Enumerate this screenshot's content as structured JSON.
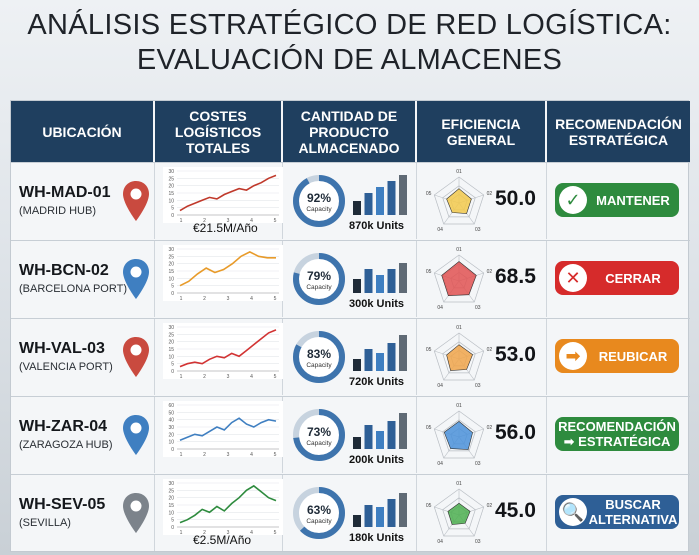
{
  "title": {
    "line1": "ANÁLISIS ESTRATÉGICO DE RED LOGÍSTICA:",
    "line2": "EVALUACIÓN DE ALMACENES"
  },
  "headers": {
    "ubicacion": "UBICACIÓN",
    "costes": "COSTES LOGÍSTICOS TOTALES",
    "cantidad": "CANTIDAD DE PRODUCTO ALMACENADO",
    "eficiencia": "EFICIENCIA GENERAL",
    "recomendacion": "RECOMENDACIÓN ESTRATÉGICA"
  },
  "colors": {
    "header_bg": "#1f3f5f",
    "green": "#2e8b3e",
    "red": "#d62b2b",
    "orange": "#e8891e",
    "blue": "#2e5f96",
    "ring": "#3e74ad"
  },
  "radar_labels": [
    "01",
    "02",
    "03",
    "04",
    "05"
  ],
  "rows": [
    {
      "code": "WH-MAD-01",
      "sub": "(MADRID HUB)",
      "pin_color": "#c94a3f",
      "pin_icon": "location-pin-icon",
      "chart": {
        "y_ticks": [
          "30",
          "25",
          "20",
          "15",
          "10",
          "5",
          "0"
        ],
        "x_ticks": [
          "1",
          "2",
          "3",
          "4",
          "5"
        ],
        "values": [
          3,
          6,
          8,
          10,
          12,
          11,
          14,
          16,
          18,
          17,
          20,
          22,
          25,
          27
        ],
        "ymax": 30,
        "color": "#c0392b"
      },
      "cost_label": "€21.5M/Año",
      "capacity": 92,
      "capacity_text": "92%",
      "capacity_word": "Capacity",
      "bars": [
        0.35,
        0.55,
        0.7,
        0.85,
        1.0
      ],
      "units": "870k Units",
      "radar": {
        "values": [
          0.55,
          0.5,
          0.5,
          0.45,
          0.5
        ],
        "color": "#f2c94c"
      },
      "score": "50.0",
      "rec": {
        "label": "MANTENER",
        "color": "#2e8b3e",
        "icon": "check-icon",
        "glyph": "✓"
      }
    },
    {
      "code": "WH-BCN-02",
      "sub": "(BARCELONA PORT)",
      "pin_color": "#3f7fc1",
      "pin_icon": "location-pin-icon",
      "chart": {
        "y_ticks": [
          "30",
          "25",
          "20",
          "15",
          "10",
          "5",
          "0"
        ],
        "x_ticks": [
          "1",
          "2",
          "3",
          "4",
          "5"
        ],
        "values": [
          5,
          8,
          13,
          17,
          14,
          16,
          20,
          25,
          28,
          25,
          24,
          24
        ],
        "ymax": 30,
        "color": "#e89b2a"
      },
      "cost_label": "",
      "capacity": 79,
      "capacity_text": "79%",
      "capacity_word": "Capacity",
      "bars": [
        0.35,
        0.6,
        0.45,
        0.6,
        0.75
      ],
      "units": "300k Units",
      "radar": {
        "values": [
          0.75,
          0.7,
          0.65,
          0.7,
          0.7
        ],
        "color": "#e05252"
      },
      "score": "68.5",
      "rec": {
        "label": "CERRAR",
        "color": "#d62b2b",
        "icon": "close-icon",
        "glyph": "✕"
      }
    },
    {
      "code": "WH-VAL-03",
      "sub": "(VALENCIA PORT)",
      "pin_color": "#c94a3f",
      "pin_icon": "location-pin-icon",
      "chart": {
        "y_ticks": [
          "30",
          "25",
          "20",
          "15",
          "10",
          "5",
          "0"
        ],
        "x_ticks": [
          "1",
          "2",
          "3",
          "4",
          "5"
        ],
        "values": [
          3,
          5,
          6,
          5,
          8,
          10,
          9,
          12,
          10,
          14,
          18,
          22,
          26,
          28
        ],
        "ymax": 30,
        "color": "#d23333"
      },
      "cost_label": "",
      "capacity": 83,
      "capacity_text": "83%",
      "capacity_word": "Capacity",
      "bars": [
        0.3,
        0.55,
        0.45,
        0.7,
        0.9
      ],
      "units": "720k Units",
      "radar": {
        "values": [
          0.55,
          0.55,
          0.5,
          0.55,
          0.5
        ],
        "color": "#f0a54a"
      },
      "score": "53.0",
      "rec": {
        "label": "REUBICAR",
        "color": "#e8891e",
        "icon": "arrow-right-icon",
        "glyph": "➡"
      }
    },
    {
      "code": "WH-ZAR-04",
      "sub": "(ZARAGOZA HUB)",
      "pin_color": "#3f7fc1",
      "pin_icon": "location-pin-icon",
      "chart": {
        "y_ticks": [
          "60",
          "50",
          "40",
          "30",
          "20",
          "10",
          "0"
        ],
        "x_ticks": [
          "1",
          "2",
          "3",
          "4",
          "5"
        ],
        "values": [
          12,
          16,
          20,
          18,
          24,
          30,
          26,
          36,
          42,
          34,
          30,
          36,
          40,
          38
        ],
        "ymax": 60,
        "color": "#3f7fc1"
      },
      "cost_label": "",
      "capacity": 73,
      "capacity_text": "73%",
      "capacity_word": "Capacity",
      "bars": [
        0.3,
        0.6,
        0.45,
        0.7,
        0.9
      ],
      "units": "200k Units",
      "radar": {
        "values": [
          0.6,
          0.55,
          0.6,
          0.55,
          0.6
        ],
        "color": "#4a90d9"
      },
      "score": "56.0",
      "rec": {
        "label": "RECOMENDACIÓN ➡ ESTRATÉGICA",
        "line1": "RECOMENDACIÓN",
        "line2": "➡ ESTRATÉGICA",
        "color": "#2e8b3e",
        "icon": "",
        "glyph": ""
      }
    },
    {
      "code": "WH-SEV-05",
      "sub": "(SEVILLA)",
      "pin_color": "#7c838b",
      "pin_icon": "location-pin-icon",
      "chart": {
        "y_ticks": [
          "30",
          "25",
          "20",
          "15",
          "10",
          "5",
          "0"
        ],
        "x_ticks": [
          "1",
          "2",
          "3",
          "4",
          "5"
        ],
        "values": [
          3,
          5,
          8,
          12,
          10,
          14,
          11,
          16,
          20,
          25,
          28,
          24,
          20,
          18
        ],
        "ymax": 30,
        "color": "#2e8b3e"
      },
      "cost_label": "€2.5M/Año",
      "capacity": 63,
      "capacity_text": "63%",
      "capacity_word": "Capacity",
      "bars": [
        0.3,
        0.55,
        0.5,
        0.7,
        0.85
      ],
      "units": "180k Units",
      "radar": {
        "values": [
          0.45,
          0.45,
          0.4,
          0.45,
          0.45
        ],
        "color": "#4caf50"
      },
      "score": "45.0",
      "rec": {
        "label": "BUSCAR ALTERNATIVA",
        "line1": "BUSCAR",
        "line2": "ALTERNATIVA",
        "color": "#2e5f96",
        "icon": "search-icon",
        "glyph": "🔍"
      }
    }
  ]
}
